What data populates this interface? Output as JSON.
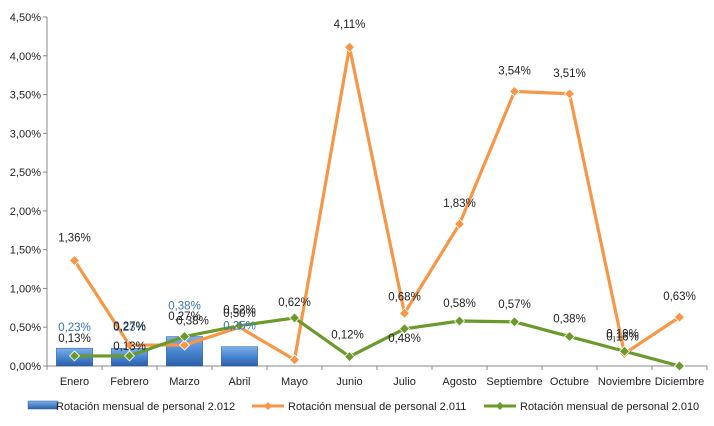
{
  "chart_data": {
    "type": "bar+line",
    "categories": [
      "Enero",
      "Febrero",
      "Marzo",
      "Abril",
      "Mayo",
      "Junio",
      "Julio",
      "Agosto",
      "Septiembre",
      "Octubre",
      "Noviembre",
      "Diciembre"
    ],
    "ylim": [
      0,
      4.5
    ],
    "yticks": [
      "0,00%",
      "0,50%",
      "1,00%",
      "1,50%",
      "2,00%",
      "2,50%",
      "3,00%",
      "3,50%",
      "4,00%",
      "4,50%"
    ],
    "ytick_values": [
      0,
      0.5,
      1,
      1.5,
      2,
      2.5,
      3,
      3.5,
      4,
      4.5
    ],
    "grid": false,
    "legend_position": "bottom",
    "series": [
      {
        "name": "Rotación mensual de personal 2.012",
        "kind": "bar",
        "color": "#4a86d0",
        "label_color": "#3a73b8",
        "values": [
          0.23,
          0.23,
          0.38,
          0.25,
          null,
          null,
          null,
          null,
          null,
          null,
          null,
          null
        ],
        "labels": [
          "0,23%",
          "0,23%",
          "0,38%",
          "0,25%",
          "",
          "",
          "",
          "",
          "",
          "",
          "",
          ""
        ]
      },
      {
        "name": "Rotación mensual de personal 2.011",
        "kind": "line",
        "color": "#f79646",
        "label_color": "#222222",
        "values": [
          1.36,
          0.27,
          0.27,
          0.5,
          0.08,
          4.11,
          0.68,
          1.83,
          3.54,
          3.51,
          0.16,
          0.63
        ],
        "labels": [
          "1,36%",
          "0,27%",
          "0,27%",
          "0,50%",
          "",
          "4,11%",
          "0,68%",
          "1,83%",
          "3,54%",
          "3,51%",
          "0,16%",
          "0,63%"
        ]
      },
      {
        "name": "Rotación mensual de personal 2.010",
        "kind": "line",
        "color": "#6a9a2a",
        "label_color": "#222222",
        "values": [
          0.13,
          0.13,
          0.38,
          0.52,
          0.62,
          0.12,
          0.48,
          0.58,
          0.57,
          0.38,
          0.19,
          0.0
        ],
        "labels": [
          "0,13%",
          "0,13%",
          "0,38%",
          "0,52%",
          "0,62%",
          "0,12%",
          "0,48%",
          "0,58%",
          "0,57%",
          "0,38%",
          "0,19%",
          ""
        ]
      }
    ]
  }
}
